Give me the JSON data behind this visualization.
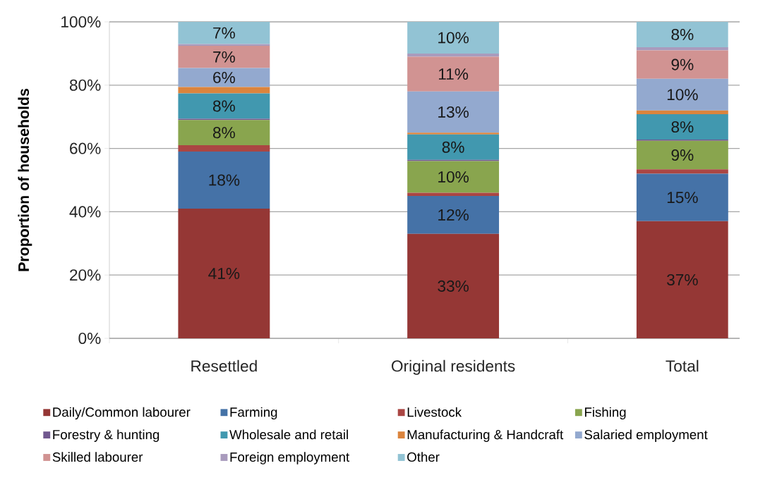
{
  "chart_data": {
    "type": "bar",
    "stacked": true,
    "ylabel": "Proportion of households",
    "categories": [
      "Resettled",
      "Original residents",
      "Total"
    ],
    "series": [
      {
        "name": "Daily/Common labourer",
        "color": "#953735",
        "values": [
          41,
          33,
          37
        ],
        "value_labels": [
          "41%",
          "33%",
          "37%"
        ]
      },
      {
        "name": "Farming",
        "color": "#4572a7",
        "values": [
          18,
          12,
          15
        ],
        "value_labels": [
          "18%",
          "12%",
          "15%"
        ]
      },
      {
        "name": "Livestock",
        "color": "#aa4643",
        "values": [
          2,
          1,
          1.4
        ],
        "value_labels": [
          null,
          null,
          null
        ]
      },
      {
        "name": "Fishing",
        "color": "#89a54e",
        "values": [
          8,
          10,
          9
        ],
        "value_labels": [
          "8%",
          "10%",
          "9%"
        ]
      },
      {
        "name": "Forestry & hunting",
        "color": "#71588f",
        "values": [
          0.4,
          0.4,
          0.4
        ],
        "value_labels": [
          null,
          null,
          null
        ]
      },
      {
        "name": "Wholesale and retail",
        "color": "#4198af",
        "values": [
          8,
          8,
          8
        ],
        "value_labels": [
          "8%",
          "8%",
          "8%"
        ]
      },
      {
        "name": "Manufacturing & Handcraft",
        "color": "#db843d",
        "values": [
          2,
          0.6,
          1.2
        ],
        "value_labels": [
          null,
          null,
          null
        ]
      },
      {
        "name": "Salaried employment",
        "color": "#93a9cf",
        "values": [
          6,
          13,
          10
        ],
        "value_labels": [
          "6%",
          "13%",
          "10%"
        ]
      },
      {
        "name": "Skilled labourer",
        "color": "#d19392",
        "values": [
          7,
          11,
          9
        ],
        "value_labels": [
          "7%",
          "11%",
          "9%"
        ]
      },
      {
        "name": "Foreign employment",
        "color": "#a99bbd",
        "values": [
          0.6,
          1,
          1
        ],
        "value_labels": [
          null,
          null,
          null
        ]
      },
      {
        "name": "Other",
        "color": "#92c3d4",
        "values": [
          7,
          10,
          8
        ],
        "value_labels": [
          "7%",
          "10%",
          "8%"
        ]
      }
    ],
    "ylim": [
      0,
      100
    ],
    "yticks": [
      {
        "value": 0,
        "label": "0%"
      },
      {
        "value": 20,
        "label": "20%"
      },
      {
        "value": 40,
        "label": "40%"
      },
      {
        "value": 60,
        "label": "60%"
      },
      {
        "value": 80,
        "label": "80%"
      },
      {
        "value": 100,
        "label": "100%"
      }
    ],
    "grid": "y",
    "legend": "bottom"
  }
}
